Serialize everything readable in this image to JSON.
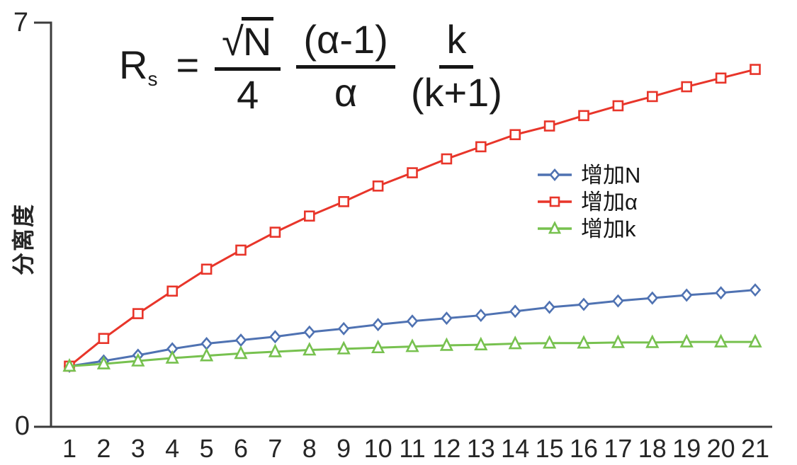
{
  "formula": {
    "lhs": "R",
    "lhs_sub": "s",
    "equals": "=",
    "frac1": {
      "radical": "√",
      "radicand": "N",
      "den": "4"
    },
    "frac2": {
      "num": "(α-1)",
      "den": "α"
    },
    "frac3": {
      "num": "k",
      "den": "(k+1)"
    }
  },
  "axes": {
    "y_tick_top": "7",
    "y_tick_bottom": "0",
    "axis_color": "#3c3c3c",
    "tick_text_color": "#262626"
  },
  "chart_data": {
    "type": "line",
    "title": "",
    "xlabel": "",
    "ylabel": "分离度",
    "ylim": [
      0,
      7
    ],
    "y_ticks_labeled": [
      0,
      7
    ],
    "x": [
      1,
      2,
      3,
      4,
      5,
      6,
      7,
      8,
      9,
      10,
      11,
      12,
      13,
      14,
      15,
      16,
      17,
      18,
      19,
      20,
      21
    ],
    "grid": false,
    "legend_position": "right-middle",
    "series": [
      {
        "name": "增加N",
        "marker": "diamond",
        "color": "#4f72b2",
        "values": [
          1.05,
          1.14,
          1.24,
          1.35,
          1.44,
          1.5,
          1.56,
          1.64,
          1.7,
          1.77,
          1.83,
          1.88,
          1.93,
          2.0,
          2.07,
          2.12,
          2.18,
          2.23,
          2.28,
          2.32,
          2.37
        ]
      },
      {
        "name": "增加α",
        "marker": "square",
        "color": "#e8352a",
        "values": [
          1.05,
          1.53,
          1.96,
          2.35,
          2.73,
          3.06,
          3.37,
          3.65,
          3.9,
          4.17,
          4.4,
          4.64,
          4.85,
          5.06,
          5.21,
          5.39,
          5.56,
          5.72,
          5.89,
          6.04,
          6.19
        ]
      },
      {
        "name": "增加k",
        "marker": "triangle",
        "color": "#77c14f",
        "values": [
          1.05,
          1.09,
          1.14,
          1.19,
          1.23,
          1.27,
          1.3,
          1.33,
          1.35,
          1.37,
          1.39,
          1.41,
          1.42,
          1.44,
          1.45,
          1.45,
          1.46,
          1.46,
          1.47,
          1.47,
          1.47
        ]
      }
    ]
  }
}
